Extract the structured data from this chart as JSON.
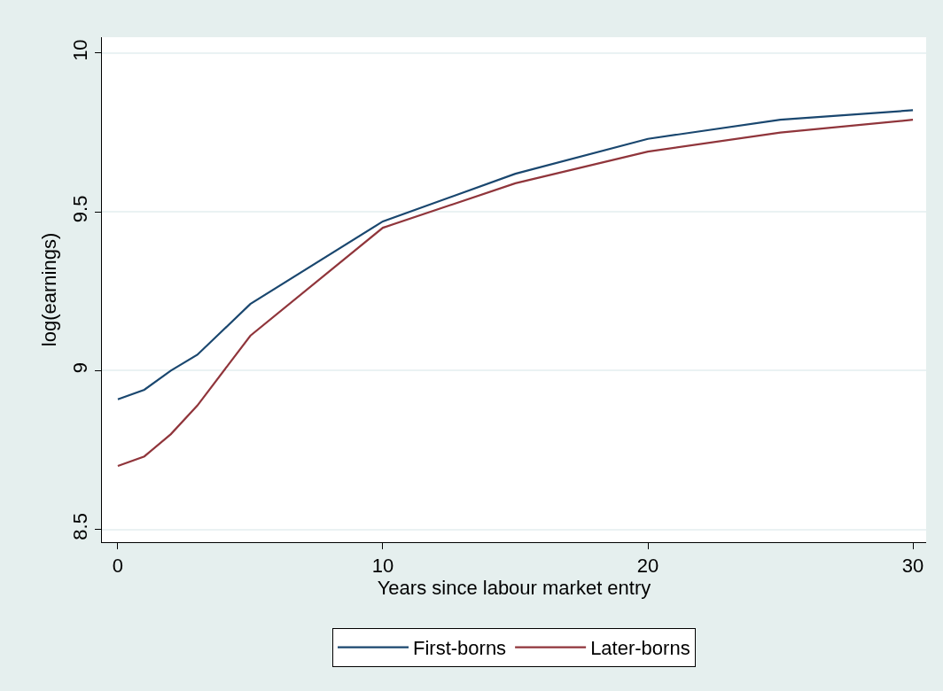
{
  "chart_data": {
    "type": "line",
    "xlabel": "Years since labour market entry",
    "ylabel": "log(earnings)",
    "x": [
      0,
      1,
      2,
      3,
      5,
      10,
      15,
      20,
      25,
      30
    ],
    "series": [
      {
        "name": "First-borns",
        "color": "#1a476f",
        "values": [
          8.91,
          8.94,
          9.0,
          9.05,
          9.21,
          9.47,
          9.62,
          9.73,
          9.79,
          9.82
        ]
      },
      {
        "name": "Later-borns",
        "color": "#90353b",
        "values": [
          8.7,
          8.73,
          8.8,
          8.89,
          9.11,
          9.45,
          9.59,
          9.69,
          9.75,
          9.79
        ]
      }
    ],
    "xlim": [
      -0.6,
      30.5
    ],
    "xticks": [
      0,
      10,
      20,
      30
    ],
    "ylim": [
      8.46,
      10.05
    ],
    "yticks": [
      8.5,
      9,
      9.5,
      10
    ],
    "grid": "y",
    "legend": "bottom",
    "marker": "none",
    "line_style": "solid"
  }
}
